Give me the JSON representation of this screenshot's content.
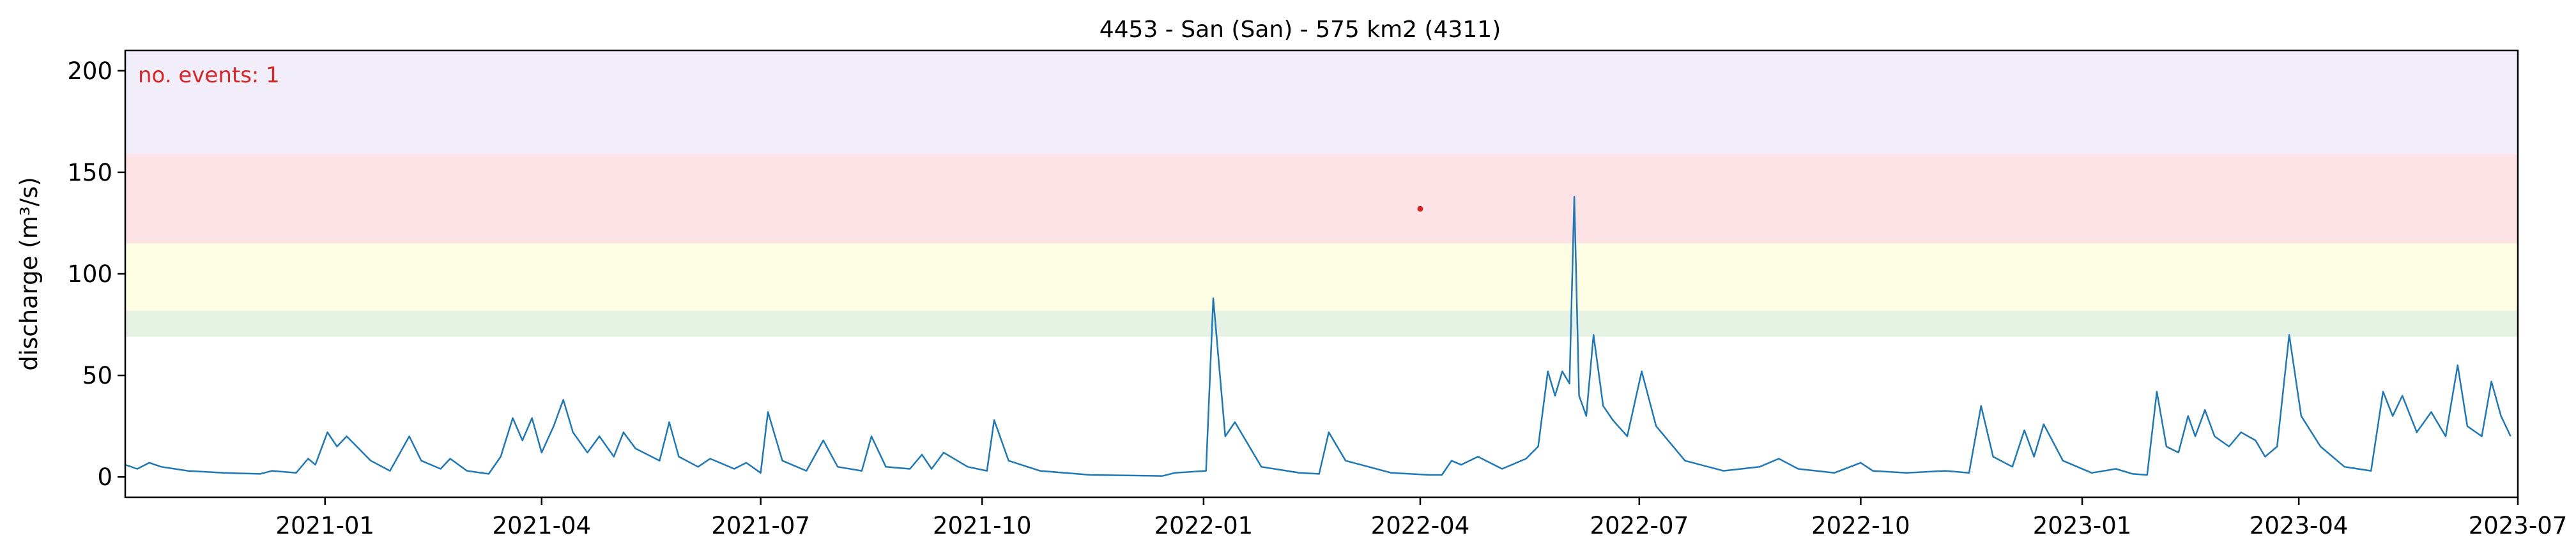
{
  "chart_data": {
    "type": "line",
    "title": "4453 - San (San) - 575 km2 (4311)",
    "xlabel": "",
    "ylabel": "discharge (m³/s)",
    "xlim": [
      "2020-10-10",
      "2023-07-01"
    ],
    "ylim": [
      -10,
      210
    ],
    "x_ticks": [
      "2021-01",
      "2021-04",
      "2021-07",
      "2021-10",
      "2022-01",
      "2022-04",
      "2022-07",
      "2022-10",
      "2023-01",
      "2023-04",
      "2023-07"
    ],
    "y_ticks": [
      0,
      50,
      100,
      150,
      200
    ],
    "grid": false,
    "annotation": "no. events: 1",
    "threshold_bands": [
      {
        "from": 69,
        "to": 82,
        "color": "#e6f2e4"
      },
      {
        "from": 82,
        "to": 115,
        "color": "#fdfde4"
      },
      {
        "from": 115,
        "to": 159,
        "color": "#fde3e5"
      },
      {
        "from": 159,
        "to": 210,
        "color": "#f1eefa"
      }
    ],
    "series": [
      {
        "color": "#1f77b4",
        "points": [
          [
            "2020-10-10",
            6
          ],
          [
            "2020-10-15",
            4
          ],
          [
            "2020-10-20",
            7
          ],
          [
            "2020-10-25",
            5
          ],
          [
            "2020-11-05",
            3
          ],
          [
            "2020-11-20",
            2
          ],
          [
            "2020-12-05",
            1.5
          ],
          [
            "2020-12-10",
            3
          ],
          [
            "2020-12-20",
            2
          ],
          [
            "2020-12-25",
            9
          ],
          [
            "2020-12-28",
            6
          ],
          [
            "2021-01-02",
            22
          ],
          [
            "2021-01-06",
            15
          ],
          [
            "2021-01-10",
            20
          ],
          [
            "2021-01-20",
            8
          ],
          [
            "2021-01-28",
            3
          ],
          [
            "2021-02-05",
            20
          ],
          [
            "2021-02-10",
            8
          ],
          [
            "2021-02-18",
            4
          ],
          [
            "2021-02-22",
            9
          ],
          [
            "2021-03-01",
            3
          ],
          [
            "2021-03-10",
            1.5
          ],
          [
            "2021-03-15",
            10
          ],
          [
            "2021-03-20",
            29
          ],
          [
            "2021-03-24",
            18
          ],
          [
            "2021-03-28",
            29
          ],
          [
            "2021-04-01",
            12
          ],
          [
            "2021-04-06",
            25
          ],
          [
            "2021-04-10",
            38
          ],
          [
            "2021-04-14",
            22
          ],
          [
            "2021-04-20",
            12
          ],
          [
            "2021-04-25",
            20
          ],
          [
            "2021-05-01",
            10
          ],
          [
            "2021-05-05",
            22
          ],
          [
            "2021-05-10",
            14
          ],
          [
            "2021-05-20",
            8
          ],
          [
            "2021-05-24",
            27
          ],
          [
            "2021-05-28",
            10
          ],
          [
            "2021-06-05",
            5
          ],
          [
            "2021-06-10",
            9
          ],
          [
            "2021-06-20",
            4
          ],
          [
            "2021-06-25",
            7
          ],
          [
            "2021-07-01",
            2
          ],
          [
            "2021-07-04",
            32
          ],
          [
            "2021-07-10",
            8
          ],
          [
            "2021-07-20",
            3
          ],
          [
            "2021-07-27",
            18
          ],
          [
            "2021-08-02",
            5
          ],
          [
            "2021-08-12",
            3
          ],
          [
            "2021-08-16",
            20
          ],
          [
            "2021-08-22",
            5
          ],
          [
            "2021-09-01",
            4
          ],
          [
            "2021-09-06",
            11
          ],
          [
            "2021-09-10",
            4
          ],
          [
            "2021-09-15",
            12
          ],
          [
            "2021-09-25",
            5
          ],
          [
            "2021-10-03",
            3
          ],
          [
            "2021-10-06",
            28
          ],
          [
            "2021-10-12",
            8
          ],
          [
            "2021-10-25",
            3
          ],
          [
            "2021-11-15",
            1
          ],
          [
            "2021-12-15",
            0.5
          ],
          [
            "2021-12-20",
            2
          ],
          [
            "2022-01-02",
            3
          ],
          [
            "2022-01-05",
            88
          ],
          [
            "2022-01-10",
            20
          ],
          [
            "2022-01-14",
            27
          ],
          [
            "2022-01-25",
            5
          ],
          [
            "2022-02-10",
            2
          ],
          [
            "2022-02-18",
            1.5
          ],
          [
            "2022-02-22",
            22
          ],
          [
            "2022-03-01",
            8
          ],
          [
            "2022-03-20",
            2
          ],
          [
            "2022-04-05",
            1
          ],
          [
            "2022-04-10",
            1
          ],
          [
            "2022-04-14",
            8
          ],
          [
            "2022-04-18",
            6
          ],
          [
            "2022-04-25",
            10
          ],
          [
            "2022-05-05",
            4
          ],
          [
            "2022-05-15",
            9
          ],
          [
            "2022-05-20",
            15
          ],
          [
            "2022-05-24",
            52
          ],
          [
            "2022-05-27",
            40
          ],
          [
            "2022-05-30",
            52
          ],
          [
            "2022-06-02",
            46
          ],
          [
            "2022-06-04",
            138
          ],
          [
            "2022-06-06",
            40
          ],
          [
            "2022-06-09",
            30
          ],
          [
            "2022-06-12",
            70
          ],
          [
            "2022-06-16",
            35
          ],
          [
            "2022-06-20",
            28
          ],
          [
            "2022-06-26",
            20
          ],
          [
            "2022-07-02",
            52
          ],
          [
            "2022-07-08",
            25
          ],
          [
            "2022-07-20",
            8
          ],
          [
            "2022-08-05",
            3
          ],
          [
            "2022-08-20",
            5
          ],
          [
            "2022-08-28",
            9
          ],
          [
            "2022-09-05",
            4
          ],
          [
            "2022-09-20",
            2
          ],
          [
            "2022-10-01",
            7
          ],
          [
            "2022-10-06",
            3
          ],
          [
            "2022-10-20",
            2
          ],
          [
            "2022-11-05",
            3
          ],
          [
            "2022-11-15",
            2
          ],
          [
            "2022-11-20",
            35
          ],
          [
            "2022-11-25",
            10
          ],
          [
            "2022-12-03",
            5
          ],
          [
            "2022-12-08",
            23
          ],
          [
            "2022-12-12",
            10
          ],
          [
            "2022-12-16",
            26
          ],
          [
            "2022-12-24",
            8
          ],
          [
            "2023-01-05",
            2
          ],
          [
            "2023-01-15",
            4
          ],
          [
            "2023-01-22",
            1.5
          ],
          [
            "2023-01-28",
            1
          ],
          [
            "2023-02-01",
            42
          ],
          [
            "2023-02-05",
            15
          ],
          [
            "2023-02-10",
            12
          ],
          [
            "2023-02-14",
            30
          ],
          [
            "2023-02-17",
            20
          ],
          [
            "2023-02-21",
            33
          ],
          [
            "2023-02-25",
            20
          ],
          [
            "2023-03-03",
            15
          ],
          [
            "2023-03-08",
            22
          ],
          [
            "2023-03-14",
            18
          ],
          [
            "2023-03-18",
            10
          ],
          [
            "2023-03-23",
            15
          ],
          [
            "2023-03-28",
            70
          ],
          [
            "2023-04-02",
            30
          ],
          [
            "2023-04-10",
            15
          ],
          [
            "2023-04-20",
            5
          ],
          [
            "2023-05-01",
            3
          ],
          [
            "2023-05-06",
            42
          ],
          [
            "2023-05-10",
            30
          ],
          [
            "2023-05-14",
            40
          ],
          [
            "2023-05-20",
            22
          ],
          [
            "2023-05-26",
            32
          ],
          [
            "2023-06-01",
            20
          ],
          [
            "2023-06-06",
            55
          ],
          [
            "2023-06-10",
            25
          ],
          [
            "2023-06-16",
            20
          ],
          [
            "2023-06-20",
            47
          ],
          [
            "2023-06-24",
            30
          ],
          [
            "2023-06-28",
            20
          ]
        ]
      }
    ],
    "events": [
      {
        "x": "2022-04-01",
        "y": 132,
        "color": "#d62728"
      }
    ]
  }
}
